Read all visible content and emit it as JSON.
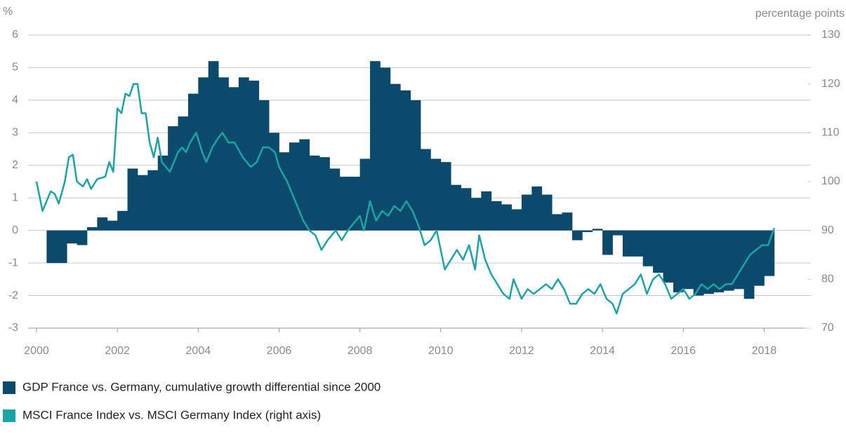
{
  "chart_data": {
    "type": "area-line",
    "y_label": "%",
    "y2_label": "percentage points",
    "xlim": [
      2000,
      2019
    ],
    "xticks": [
      2000,
      2002,
      2004,
      2006,
      2008,
      2010,
      2012,
      2014,
      2016,
      2018
    ],
    "ylim": [
      -3,
      6
    ],
    "yticks": [
      -3,
      -2,
      -1,
      0,
      1,
      2,
      3,
      4,
      5,
      6
    ],
    "y2lim": [
      70,
      130
    ],
    "y2ticks": [
      70,
      80,
      90,
      100,
      110,
      120,
      130
    ],
    "grid": true,
    "series": [
      {
        "name": "GDP France vs. Germany, cumulative growth differential since 2000",
        "color": "#0c4a6c",
        "kind": "step-area",
        "x": [
          2000.25,
          2000.5,
          2000.75,
          2001,
          2001.25,
          2001.5,
          2001.75,
          2002,
          2002.25,
          2002.5,
          2002.75,
          2003,
          2003.25,
          2003.5,
          2003.75,
          2004,
          2004.25,
          2004.5,
          2004.75,
          2005,
          2005.25,
          2005.5,
          2005.75,
          2006,
          2006.25,
          2006.5,
          2006.75,
          2007,
          2007.25,
          2007.5,
          2007.75,
          2008,
          2008.25,
          2008.5,
          2008.75,
          2009,
          2009.25,
          2009.5,
          2009.75,
          2010,
          2010.25,
          2010.5,
          2010.75,
          2011,
          2011.25,
          2011.5,
          2011.75,
          2012,
          2012.25,
          2012.5,
          2012.75,
          2013,
          2013.25,
          2013.5,
          2013.75,
          2014,
          2014.25,
          2014.5,
          2014.75,
          2015,
          2015.25,
          2015.5,
          2015.75,
          2016,
          2016.25,
          2016.5,
          2016.75,
          2017,
          2017.25,
          2017.5,
          2017.75,
          2018
        ],
        "values": [
          -1.0,
          -1.0,
          -0.4,
          -0.45,
          0.1,
          0.4,
          0.3,
          0.6,
          1.9,
          1.7,
          1.85,
          2.3,
          3.2,
          3.5,
          4.2,
          4.7,
          5.2,
          4.7,
          4.4,
          4.7,
          4.6,
          4.0,
          3.0,
          2.4,
          2.7,
          2.8,
          2.3,
          2.25,
          1.9,
          1.65,
          1.65,
          2.2,
          5.2,
          5.0,
          4.5,
          4.3,
          4.0,
          2.5,
          2.2,
          2.1,
          1.4,
          1.3,
          1.0,
          1.2,
          0.9,
          0.8,
          0.65,
          1.1,
          1.35,
          1.1,
          0.5,
          0.55,
          -0.3,
          -0.05,
          0.05,
          -0.75,
          -0.15,
          -0.8,
          -0.8,
          -1.1,
          -1.3,
          -1.6,
          -1.9,
          -1.8,
          -2.0,
          -1.95,
          -1.9,
          -1.85,
          -1.8,
          -2.1,
          -1.7,
          -1.4
        ]
      },
      {
        "name": "MSCI France Index vs. MSCI Germany Index (right axis)",
        "color": "#1ba3a8",
        "kind": "line",
        "axis": "y2",
        "x": [
          2000,
          2000.15,
          2000.35,
          2000.45,
          2000.55,
          2000.7,
          2000.8,
          2000.9,
          2001,
          2001.15,
          2001.25,
          2001.35,
          2001.5,
          2001.7,
          2001.8,
          2001.9,
          2002,
          2002.1,
          2002.2,
          2002.3,
          2002.4,
          2002.5,
          2002.6,
          2002.7,
          2002.8,
          2002.9,
          2003,
          2003.1,
          2003.2,
          2003.3,
          2003.4,
          2003.5,
          2003.6,
          2003.7,
          2003.8,
          2003.95,
          2004.1,
          2004.2,
          2004.35,
          2004.5,
          2004.6,
          2004.75,
          2004.9,
          2005.1,
          2005.3,
          2005.45,
          2005.6,
          2005.75,
          2005.9,
          2006,
          2006.2,
          2006.4,
          2006.6,
          2006.75,
          2006.9,
          2007.05,
          2007.2,
          2007.4,
          2007.55,
          2007.7,
          2007.8,
          2008,
          2008.1,
          2008.25,
          2008.4,
          2008.55,
          2008.7,
          2008.85,
          2009,
          2009.15,
          2009.3,
          2009.45,
          2009.6,
          2009.75,
          2009.9,
          2010,
          2010.1,
          2010.25,
          2010.4,
          2010.55,
          2010.7,
          2010.85,
          2010.95,
          2011.1,
          2011.25,
          2011.4,
          2011.55,
          2011.7,
          2011.8,
          2011.9,
          2012,
          2012.15,
          2012.3,
          2012.45,
          2012.6,
          2012.75,
          2012.9,
          2013.05,
          2013.2,
          2013.35,
          2013.5,
          2013.65,
          2013.8,
          2013.95,
          2014.1,
          2014.25,
          2014.35,
          2014.5,
          2014.65,
          2014.8,
          2014.95,
          2015.1,
          2015.25,
          2015.4,
          2015.55,
          2015.7,
          2015.85,
          2016,
          2016.15,
          2016.3,
          2016.45,
          2016.6,
          2016.75,
          2016.9,
          2017.05,
          2017.2,
          2017.35,
          2017.5,
          2017.65,
          2017.8,
          2017.95,
          2018.1,
          2018.25
        ],
        "values": [
          100,
          94,
          98,
          97.5,
          95.5,
          100,
          105,
          105.5,
          100,
          99,
          100.5,
          98.5,
          100.5,
          101,
          104,
          102,
          115,
          114,
          118,
          117.5,
          120,
          120,
          114,
          114,
          108,
          105,
          109,
          104,
          103,
          102,
          104,
          106,
          107,
          106,
          108,
          110,
          106,
          104,
          107,
          109,
          110,
          108,
          108,
          105,
          103,
          104,
          107,
          107,
          106,
          103,
          100,
          96,
          92,
          90,
          89,
          86,
          88,
          90,
          88,
          90,
          91,
          93,
          90,
          96,
          92,
          94,
          93,
          95,
          94,
          96,
          94,
          91,
          87,
          88,
          90,
          86,
          82,
          84,
          86,
          84,
          87,
          82,
          89,
          84,
          81,
          79,
          77,
          76,
          80,
          78,
          76,
          78,
          77,
          78,
          79,
          78,
          80,
          78,
          75,
          75,
          77,
          78,
          77,
          79,
          76,
          75,
          73,
          77,
          78,
          79,
          81,
          77,
          80,
          81,
          79,
          76,
          77,
          78,
          76,
          77,
          79,
          78,
          79,
          78,
          79,
          79,
          81,
          83,
          85,
          86,
          87,
          87,
          90.5
        ]
      }
    ]
  }
}
